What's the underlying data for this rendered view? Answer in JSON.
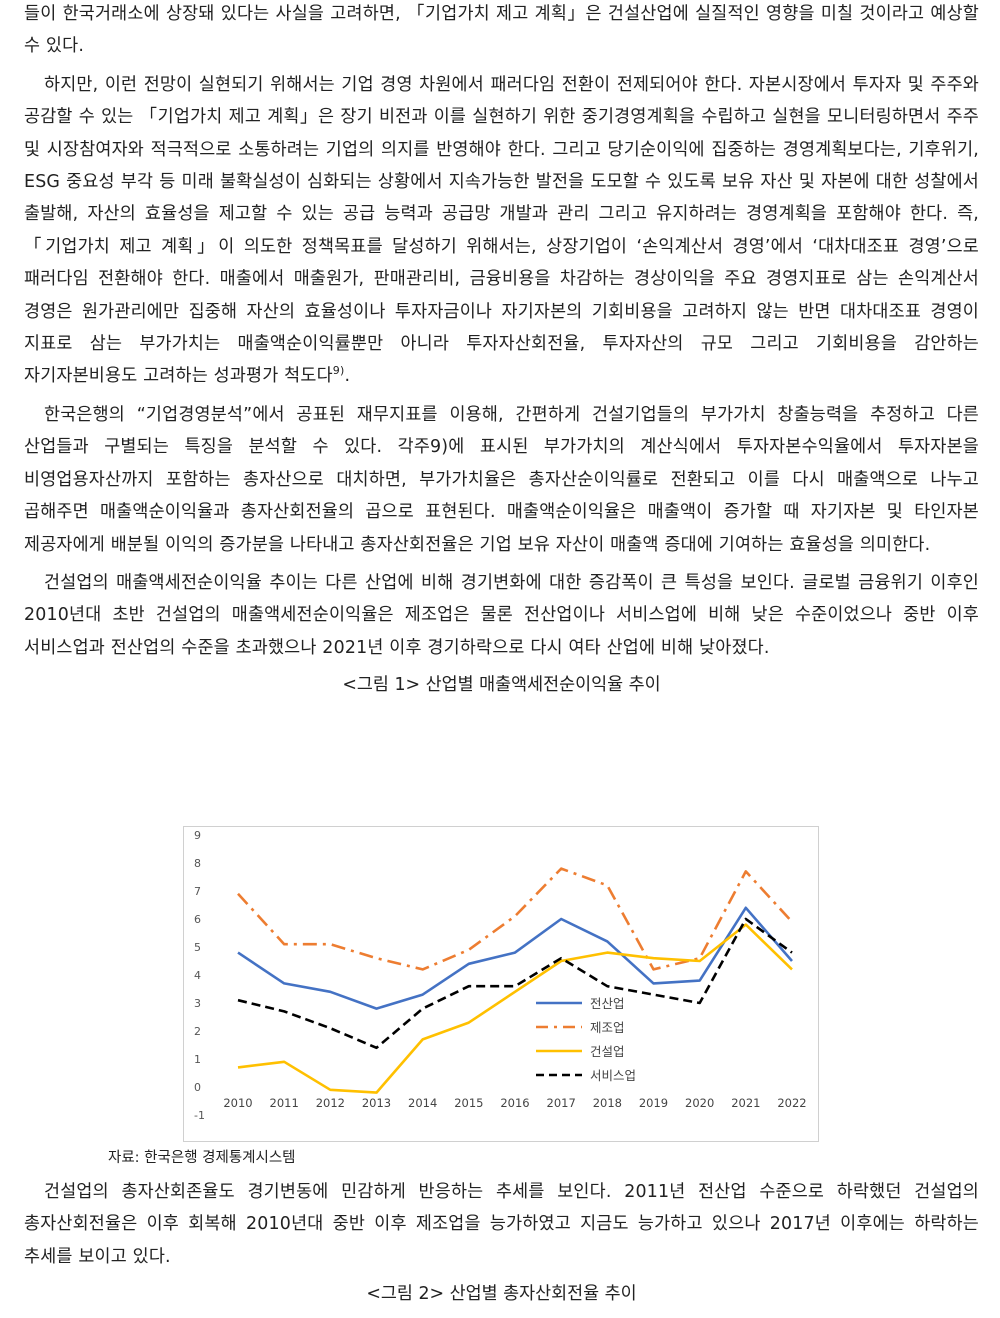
{
  "paragraphs_top": [
    "들이 한국거래소에 상장돼 있다는 사실을 고려하면, 「기업가치 제고 계획」은 건설산업에 실질적인 영향을 미칠 것이라고 예상할 수 있다.",
    "하지만, 이런 전망이 실현되기 위해서는 기업 경영 차원에서 패러다임 전환이 전제되어야 한다. 자본시장에서 투자자 및 주주와 공감할 수 있는 「기업가치 제고 계획」은 장기 비전과 이를 실현하기 위한 중기경영계획을 수립하고 실현을 모니터링하면서 주주 및 시장참여자와 적극적으로 소통하려는 기업의 의지를 반영해야 한다. 그리고 당기순이익에 집중하는 경영계획보다는, 기후위기, ESG 중요성 부각 등 미래 불확실성이 심화되는 상황에서 지속가능한 발전을 도모할 수 있도록 보유 자산 및 자본에 대한 성찰에서 출발해, 자산의 효율성을 제고할 수 있는 공급 능력과 공급망 개발과 관리 그리고 유지하려는 경영계획을 포함해야 한다. 즉, 「기업가치 제고 계획」이 의도한 정책목표를 달성하기 위해서는, 상장기업이 ‘손익계산서 경영’에서 ‘대차대조표 경영’으로 패러다임 전환해야 한다. 매출에서 매출원가, 판매관리비, 금융비용을 차감하는 경상이익을 주요 경영지표로 삼는 손익계산서 경영은 원가관리에만 집중해 자산의 효율성이나 투자자금이나 자기자본의 기회비용을 고려하지 않는 반면 대차대조표 경영이 지표로 삼는 부가가치는 매출액순이익률뿐만 아니라 투자자산회전율, 투자자산의 규모 그리고 기회비용을 감안하는 자기자본비용도 고려하는 성과평가 척도다",
    "한국은행의 “기업경영분석”에서 공표된 재무지표를 이용해, 간편하게 건설기업들의 부가가치 창출능력을 추정하고 다른 산업들과 구별되는 특징을 분석할 수 있다. 각주9)에 표시된 부가가치의 계산식에서 투자자본수익율에서 투자자본을 비영업용자산까지 포함하는 총자산으로 대치하면, 부가가치율은 총자산순이익률로 전환되고 이를 다시 매출액으로 나누고 곱해주면 매출액순이익율과 총자산회전율의 곱으로 표현된다. 매출액순이익율은 매출액이 증가할 때 자기자본 및 타인자본 제공자에게 배분될 이익의 증가분을 나타내고 총자산회전율은 기업 보유 자산이 매출액 증대에 기여하는 효율성을 의미한다.",
    "건설업의 매출액세전순이익율 추이는 다른 산업에 비해 경기변화에 대한 증감폭이 큰 특성을 보인다. 글로벌 금융위기 이후인 2010년대 초반 건설업의 매출액세전순이익율은 제조업은 물론 전산업이나 서비스업에 비해 낮은 수준이었으나 중반 이후 서비스업과 전산업의 수준을 초과했으나 2021년 이후 경기하락으로 다시 여타 산업에 비해 낮아졌다."
  ],
  "footnote_mark": "9)",
  "footnote_tail": ".",
  "figure1_caption": "<그림 1> 산업별 매출액세전순이익율 추이",
  "figure1_source": "자료: 한국은행 경제통계시스템",
  "paragraph_after": "건설업의 총자산회존율도 경기변동에 민감하게 반응하는 추세를 보인다. 2011년 전산업 수준으로 하락했던 건설업의 총자산회전율은 이후 회복해 2010년대 중반 이후 제조업을 능가하였고 지금도 능가하고 있으나 2017년 이후에는 하락하는 추세를 보이고 있다.",
  "figure2_caption": "<그림 2> 산업별 총자산회전율 추이",
  "chart_data": {
    "type": "line",
    "title": "",
    "xlabel": "",
    "ylabel": "",
    "ylim": [
      -1,
      9
    ],
    "yticks": [
      "9",
      "8",
      "7",
      "6",
      "5",
      "4",
      "3",
      "2",
      "1",
      "0",
      "-1"
    ],
    "x": [
      "2010",
      "2011",
      "2012",
      "2013",
      "2014",
      "2015",
      "2016",
      "2017",
      "2018",
      "2019",
      "2020",
      "2021",
      "2022"
    ],
    "grid": false,
    "legend_position": "center-right",
    "series": [
      {
        "name": "전산업",
        "color": "#4472c4",
        "style": "solid",
        "values": [
          4.8,
          3.7,
          3.4,
          2.8,
          3.3,
          4.4,
          4.8,
          6.0,
          5.2,
          3.7,
          3.8,
          6.4,
          4.5
        ]
      },
      {
        "name": "제조업",
        "color": "#ed7d31",
        "style": "dashdot",
        "values": [
          6.9,
          5.1,
          5.1,
          4.6,
          4.2,
          4.9,
          6.1,
          7.8,
          7.2,
          4.2,
          4.6,
          7.7,
          5.9
        ]
      },
      {
        "name": "건설업",
        "color": "#ffc000",
        "style": "solid",
        "values": [
          0.7,
          0.9,
          -0.1,
          -0.2,
          1.7,
          2.3,
          3.4,
          4.5,
          4.8,
          4.6,
          4.5,
          5.8,
          4.2
        ]
      },
      {
        "name": "서비스업",
        "color": "#000000",
        "style": "dashed",
        "values": [
          3.1,
          2.7,
          2.1,
          1.4,
          2.8,
          3.6,
          3.6,
          4.6,
          3.6,
          3.3,
          3.0,
          6.0,
          4.8
        ]
      }
    ]
  }
}
